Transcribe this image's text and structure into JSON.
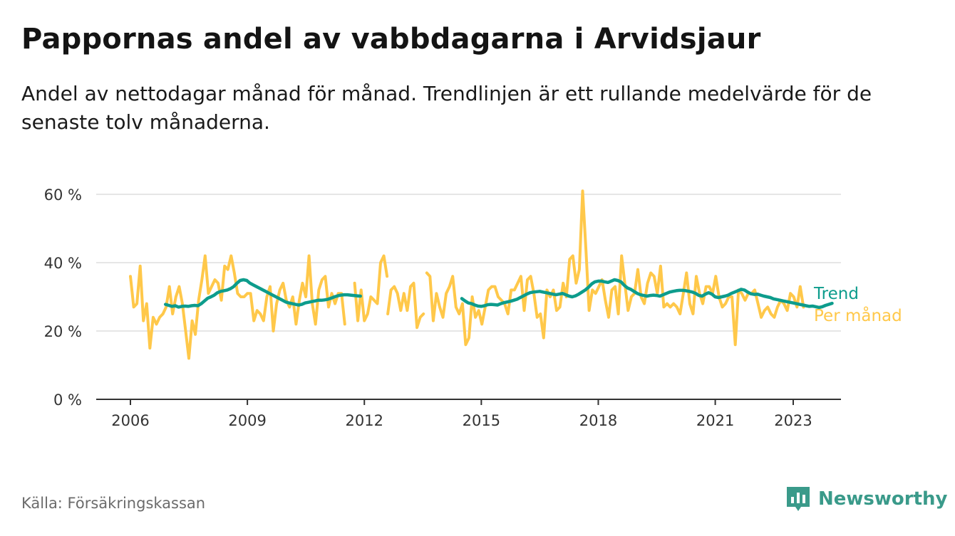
{
  "title": "Pappornas andel av vabbdagarna i Arvidsjaur",
  "subtitle": "Andel av nettodagar månad för månad. Trendlinjen är ett rullande medelvärde för de senaste tolv månaderna.",
  "source": "Källa: Försäkringskassan",
  "brand": "Newsworthy",
  "colors": {
    "trend": "#0d9c8c",
    "monthly": "#ffc84a",
    "grid": "#dddddd",
    "axis": "#333333",
    "brand": "#3a9a8a"
  },
  "chart_data": {
    "type": "line",
    "title": "Pappornas andel av vabbdagarna i Arvidsjaur",
    "x_unit": "year",
    "xlim": [
      2005.5,
      2024.2
    ],
    "ylim": [
      0,
      60
    ],
    "y_ticks": [
      0,
      20,
      40,
      60
    ],
    "y_tick_labels": [
      "0 %",
      "20 %",
      "40 %",
      "60 %"
    ],
    "x_ticks": [
      2006,
      2009,
      2012,
      2015,
      2018,
      2021,
      2023
    ],
    "x_tick_labels": [
      "2006",
      "2009",
      "2012",
      "2015",
      "2018",
      "2021",
      "2023"
    ],
    "grid": true,
    "legend_position": "right-end",
    "series": [
      {
        "name": "Per månad",
        "color": "#ffc84a",
        "segments": [
          {
            "start": 2006.0,
            "step": 0.0833,
            "values": [
              36,
              27,
              28,
              39,
              23,
              28,
              15,
              24,
              22,
              24,
              25,
              27,
              33,
              25,
              30,
              33,
              28,
              20,
              12,
              23,
              19,
              29,
              35,
              42,
              31,
              33,
              35,
              34,
              29,
              39,
              38,
              42,
              37,
              31,
              30,
              30,
              31,
              31,
              23,
              26,
              25,
              23,
              30,
              33,
              20,
              28,
              32,
              34,
              29,
              27,
              30,
              22,
              29,
              34,
              30,
              42,
              28,
              22,
              32,
              35,
              36,
              27,
              31,
              28,
              31,
              31,
              22
            ]
          },
          {
            "start": 2011.75,
            "step": 0.0833,
            "values": [
              34,
              23,
              32,
              23,
              25,
              30,
              29,
              28,
              40,
              42,
              36
            ]
          },
          {
            "start": 2012.6,
            "step": 0.0833,
            "values": [
              25,
              32,
              33,
              31,
              26,
              31,
              26,
              33,
              34,
              21,
              24,
              25
            ]
          },
          {
            "start": 2013.6,
            "step": 0.0833,
            "values": [
              37,
              36,
              23,
              31,
              27,
              24,
              31,
              33,
              36,
              27,
              25,
              28,
              16,
              18,
              30,
              24,
              26,
              22,
              27,
              32,
              33,
              33,
              30,
              29,
              28,
              25,
              32,
              32,
              34,
              36,
              26,
              35,
              36,
              31,
              24,
              25,
              18,
              32,
              30,
              32,
              26,
              27,
              34,
              30,
              41,
              42,
              34,
              38,
              61,
              44,
              26,
              32,
              31,
              33,
              35,
              29,
              24,
              32,
              33,
              25,
              42,
              34,
              26,
              30,
              31,
              38,
              30,
              28,
              34,
              37,
              36,
              31,
              39,
              27,
              28,
              27,
              28,
              27,
              25,
              31,
              37,
              28,
              25,
              36,
              31,
              28,
              33,
              33,
              31,
              36,
              30,
              27,
              28,
              30,
              30,
              16,
              32,
              31,
              29,
              31,
              31,
              32,
              28,
              24,
              26,
              27,
              25,
              24,
              27,
              29,
              28,
              26,
              31,
              30,
              27,
              33,
              27
            ]
          }
        ]
      },
      {
        "name": "Trend",
        "color": "#0d9c8c",
        "segments": [
          {
            "start": 2006.9,
            "step": 0.0833,
            "values": [
              27.8,
              27.5,
              27.2,
              27.4,
              27.0,
              27.2,
              27.3,
              27.2,
              27.4,
              27.5,
              27.4,
              28.0,
              28.8,
              29.6,
              30.0,
              30.5,
              31.2,
              31.6,
              31.8,
              32.0,
              32.4,
              33.0,
              34.0,
              34.8,
              35.0,
              34.8,
              34.0,
              33.5,
              33.0,
              32.5,
              32.0,
              31.5,
              31.0,
              30.5,
              30.0,
              29.5,
              29.0,
              28.5,
              28.2,
              28.0,
              27.8,
              27.6,
              27.8,
              28.2,
              28.4,
              28.6,
              28.8,
              29.0,
              29.0,
              29.1,
              29.3,
              29.6,
              30.0,
              30.3,
              30.5,
              30.6,
              30.6,
              30.5,
              30.4,
              30.3,
              30.2
            ]
          },
          {
            "start": 2014.5,
            "step": 0.0833,
            "values": [
              29.5,
              28.8,
              28.2,
              28.0,
              27.6,
              27.3,
              27.2,
              27.4,
              27.7,
              27.8,
              27.7,
              27.6,
              28.0,
              28.3,
              28.5,
              28.7,
              29.0,
              29.3,
              29.8,
              30.3,
              30.8,
              31.2,
              31.4,
              31.5,
              31.6,
              31.4,
              31.2,
              31.0,
              30.8,
              30.6,
              30.8,
              31.0,
              30.6,
              30.2,
              30.0,
              30.3,
              30.8,
              31.4,
              32.0,
              32.8,
              33.8,
              34.4,
              34.6,
              34.6,
              34.4,
              34.2,
              34.6,
              35.0,
              34.8,
              34.4,
              33.4,
              32.6,
              32.2,
              31.6,
              31.0,
              30.6,
              30.4,
              30.2,
              30.4,
              30.5,
              30.4,
              30.2,
              30.6,
              31.0,
              31.4,
              31.6,
              31.8,
              31.9,
              31.9,
              31.8,
              31.6,
              31.4,
              31.0,
              30.4,
              30.2,
              30.8,
              31.2,
              30.8,
              30.0,
              29.8,
              30.0,
              30.2,
              30.5,
              31.0,
              31.4,
              31.8,
              32.2,
              32.0,
              31.4,
              30.9,
              30.7,
              30.8,
              30.5,
              30.2,
              30.0,
              29.8,
              29.4,
              29.2,
              29.0,
              28.8,
              28.6,
              28.4,
              28.2,
              28.0,
              27.8,
              27.6,
              27.4,
              27.2,
              27.3,
              27.1,
              26.9,
              27.1,
              27.5,
              27.8,
              28.1
            ]
          }
        ]
      }
    ]
  }
}
